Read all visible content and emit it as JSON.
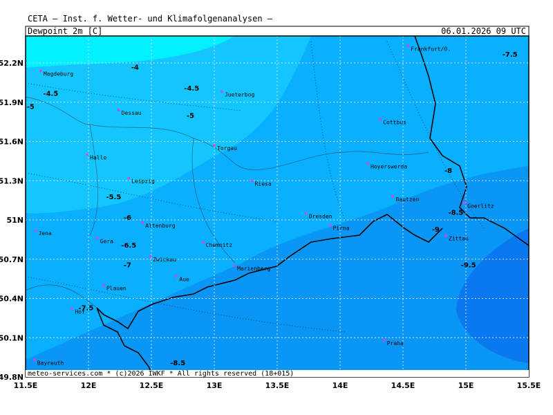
{
  "header": {
    "title": "CETA — Inst. f. Wetter- und Klimafolgenanalysen —",
    "variable": "Dewpoint_2m [C]",
    "datetime": "06.01.2026 09 UTC"
  },
  "footer": "meteo-services.com * (c)2026 IWKF * All rights reserved (18+015)",
  "map": {
    "lonlim": [
      11.5,
      15.5
    ],
    "latlim": [
      49.8,
      52.4
    ],
    "lonticks": [
      {
        "value": 11.5,
        "label": "11.5E"
      },
      {
        "value": 12,
        "label": "12E"
      },
      {
        "value": 12.5,
        "label": "12.5E"
      },
      {
        "value": 13,
        "label": "13E"
      },
      {
        "value": 13.5,
        "label": "13.5E"
      },
      {
        "value": 14,
        "label": "14E"
      },
      {
        "value": 14.5,
        "label": "14.5E"
      },
      {
        "value": 15,
        "label": "15E"
      },
      {
        "value": 15.5,
        "label": "15.5E"
      }
    ],
    "latticks": [
      {
        "value": 49.8,
        "label": "49.8N"
      },
      {
        "value": 50.1,
        "label": "50.1N"
      },
      {
        "value": 50.4,
        "label": "50.4N"
      },
      {
        "value": 50.7,
        "label": "50.7N"
      },
      {
        "value": 51,
        "label": "51N"
      },
      {
        "value": 51.3,
        "label": "51.3N"
      },
      {
        "value": 51.6,
        "label": "51.6N"
      },
      {
        "value": 51.9,
        "label": "51.9N"
      },
      {
        "value": 52.2,
        "label": "52.2N"
      }
    ]
  },
  "cities": [
    {
      "name": "Magdeburg",
      "lon": 11.62,
      "lat": 52.14
    },
    {
      "name": "Jueterbog",
      "lon": 13.06,
      "lat": 51.98
    },
    {
      "name": "Dessau",
      "lon": 12.24,
      "lat": 51.84
    },
    {
      "name": "Frankfurt/O.",
      "lon": 14.54,
      "lat": 52.33
    },
    {
      "name": "Cottbus",
      "lon": 14.32,
      "lat": 51.77
    },
    {
      "name": "Torgau",
      "lon": 13.0,
      "lat": 51.57
    },
    {
      "name": "Halle",
      "lon": 11.99,
      "lat": 51.5
    },
    {
      "name": "Hoyerswerda",
      "lon": 14.22,
      "lat": 51.43
    },
    {
      "name": "Leipzig",
      "lon": 12.32,
      "lat": 51.32
    },
    {
      "name": "Riesa",
      "lon": 13.3,
      "lat": 51.3
    },
    {
      "name": "Bautzen",
      "lon": 14.42,
      "lat": 51.18
    },
    {
      "name": "Dresden",
      "lon": 13.73,
      "lat": 51.05
    },
    {
      "name": "Goerlitz",
      "lon": 14.99,
      "lat": 51.13
    },
    {
      "name": "Pirna",
      "lon": 13.92,
      "lat": 50.96
    },
    {
      "name": "Altenburg",
      "lon": 12.43,
      "lat": 50.98
    },
    {
      "name": "Jena",
      "lon": 11.58,
      "lat": 50.92
    },
    {
      "name": "Zittau",
      "lon": 14.84,
      "lat": 50.88
    },
    {
      "name": "Gera",
      "lon": 12.07,
      "lat": 50.86
    },
    {
      "name": "Chemnitz",
      "lon": 12.91,
      "lat": 50.83
    },
    {
      "name": "Zwickau",
      "lon": 12.49,
      "lat": 50.72
    },
    {
      "name": "Marienberg",
      "lon": 13.16,
      "lat": 50.65
    },
    {
      "name": "Aue",
      "lon": 12.7,
      "lat": 50.57
    },
    {
      "name": "Plauen",
      "lon": 12.12,
      "lat": 50.5
    },
    {
      "name": "Hof",
      "lon": 11.87,
      "lat": 50.32
    },
    {
      "name": "Praha",
      "lon": 14.35,
      "lat": 50.08
    },
    {
      "name": "Bayreuth",
      "lon": 11.57,
      "lat": 49.93
    }
  ],
  "contour_labels": [
    {
      "value": -7.5,
      "lon": 15.35,
      "lat": 52.27
    },
    {
      "value": -4,
      "lon": 12.37,
      "lat": 52.17
    },
    {
      "value": -4.5,
      "lon": 12.82,
      "lat": 52.01
    },
    {
      "value": -4.5,
      "lon": 11.7,
      "lat": 51.97
    },
    {
      "value": -5,
      "lon": 11.54,
      "lat": 51.87
    },
    {
      "value": -5,
      "lon": 12.81,
      "lat": 51.8
    },
    {
      "value": -8,
      "lon": 14.86,
      "lat": 51.38
    },
    {
      "value": -5.5,
      "lon": 12.2,
      "lat": 51.18
    },
    {
      "value": -6,
      "lon": 12.31,
      "lat": 51.02
    },
    {
      "value": -8.5,
      "lon": 14.92,
      "lat": 51.06
    },
    {
      "value": -9,
      "lon": 14.76,
      "lat": 50.93
    },
    {
      "value": -6.5,
      "lon": 12.32,
      "lat": 50.81
    },
    {
      "value": -7,
      "lon": 12.31,
      "lat": 50.66
    },
    {
      "value": -9.5,
      "lon": 15.02,
      "lat": 50.66
    },
    {
      "value": -7.5,
      "lon": 11.98,
      "lat": 50.33
    },
    {
      "value": -8.5,
      "lon": 12.71,
      "lat": 49.91
    }
  ]
}
